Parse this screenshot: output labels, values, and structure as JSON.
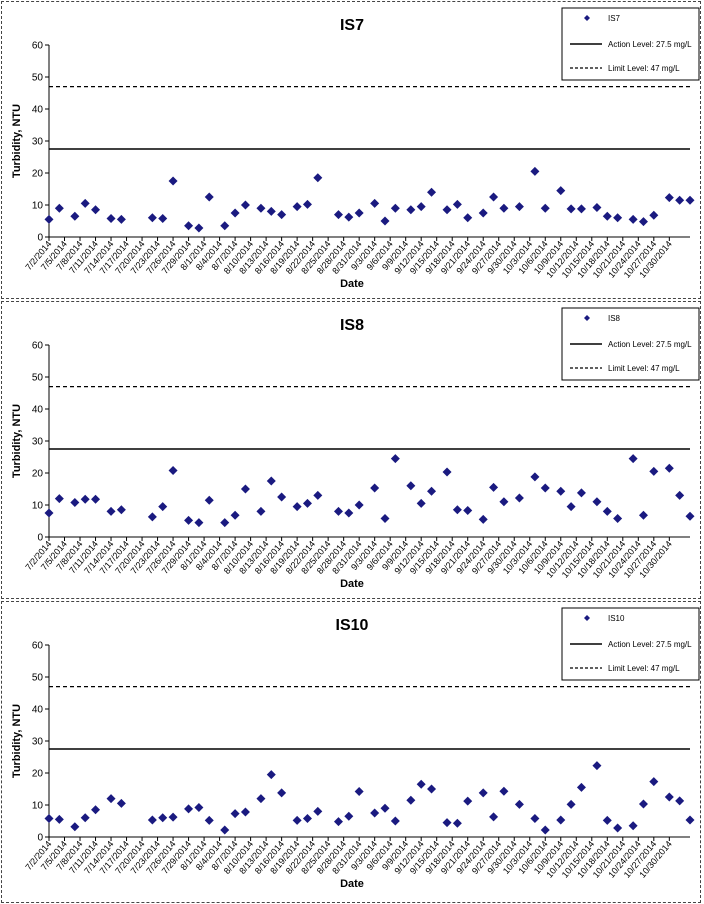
{
  "colors": {
    "marker": "#1a1a80",
    "line": "#000000",
    "axis": "#000000"
  },
  "dates": [
    "7/2/2014",
    "7/5/2014",
    "7/8/2014",
    "7/11/2014",
    "7/14/2014",
    "7/17/2014",
    "7/20/2014",
    "7/23/2014",
    "7/26/2014",
    "7/29/2014",
    "8/1/2014",
    "8/4/2014",
    "8/7/2014",
    "8/10/2014",
    "8/13/2014",
    "8/16/2014",
    "8/19/2014",
    "8/22/2014",
    "8/25/2014",
    "8/28/2014",
    "8/31/2014",
    "9/3/2014",
    "9/6/2014",
    "9/9/2014",
    "9/12/2014",
    "9/15/2014",
    "9/18/2014",
    "9/21/2014",
    "9/24/2014",
    "9/27/2014",
    "9/30/2014",
    "10/3/2014",
    "10/6/2014",
    "10/9/2014",
    "10/12/2014",
    "10/15/2014",
    "10/18/2014",
    "10/21/2014",
    "10/24/2014",
    "10/27/2014",
    "10/30/2014"
  ],
  "chart_data": [
    {
      "type": "scatter",
      "title": "IS7",
      "xlabel": "Date",
      "ylabel": "Turbidity, NTU",
      "ylim": [
        0,
        60
      ],
      "yticks": [
        0,
        10,
        20,
        30,
        40,
        50,
        60
      ],
      "grid": false,
      "legend_position": "top-right",
      "series": [
        {
          "name": "IS7",
          "marker": "diamond",
          "points": [
            [
              "7/2/2014",
              5.5
            ],
            [
              "7/4/2014",
              9
            ],
            [
              "7/7/2014",
              6.5
            ],
            [
              "7/9/2014",
              10.5
            ],
            [
              "7/11/2014",
              8.5
            ],
            [
              "7/14/2014",
              5.8
            ],
            [
              "7/16/2014",
              5.5
            ],
            [
              "7/22/2014",
              6
            ],
            [
              "7/24/2014",
              5.8
            ],
            [
              "7/26/2014",
              17.5
            ],
            [
              "7/29/2014",
              3.5
            ],
            [
              "7/31/2014",
              2.8
            ],
            [
              "8/2/2014",
              12.5
            ],
            [
              "8/5/2014",
              3.5
            ],
            [
              "8/7/2014",
              7.5
            ],
            [
              "8/9/2014",
              10
            ],
            [
              "8/12/2014",
              9
            ],
            [
              "8/14/2014",
              8
            ],
            [
              "8/16/2014",
              7
            ],
            [
              "8/19/2014",
              9.5
            ],
            [
              "8/21/2014",
              10.2
            ],
            [
              "8/23/2014",
              18.5
            ],
            [
              "8/27/2014",
              7
            ],
            [
              "8/29/2014",
              6.2
            ],
            [
              "8/31/2014",
              7.5
            ],
            [
              "9/3/2014",
              10.5
            ],
            [
              "9/5/2014",
              5
            ],
            [
              "9/7/2014",
              9
            ],
            [
              "9/10/2014",
              8.5
            ],
            [
              "9/12/2014",
              9.5
            ],
            [
              "9/14/2014",
              14
            ],
            [
              "9/17/2014",
              8.5
            ],
            [
              "9/19/2014",
              10.2
            ],
            [
              "9/21/2014",
              6
            ],
            [
              "9/24/2014",
              7.5
            ],
            [
              "9/26/2014",
              12.5
            ],
            [
              "9/28/2014",
              9
            ],
            [
              "10/1/2014",
              9.5
            ],
            [
              "10/4/2014",
              20.5
            ],
            [
              "10/6/2014",
              9
            ],
            [
              "10/9/2014",
              14.5
            ],
            [
              "10/11/2014",
              8.8
            ],
            [
              "10/13/2014",
              8.8
            ],
            [
              "10/16/2014",
              9.2
            ],
            [
              "10/18/2014",
              6.5
            ],
            [
              "10/20/2014",
              6
            ],
            [
              "10/23/2014",
              5.5
            ],
            [
              "10/25/2014",
              4.8
            ],
            [
              "10/27/2014",
              6.8
            ],
            [
              "10/30/2014",
              12.3
            ],
            [
              "11/1/2014",
              11.5
            ],
            [
              "11/3/2014",
              11.5
            ]
          ]
        },
        {
          "name": "Action Level: 27.5 mg/L",
          "type": "line",
          "style": "solid",
          "value": 27.5
        },
        {
          "name": "Limit Level: 47 mg/L",
          "type": "line",
          "style": "dashed",
          "value": 47
        }
      ]
    },
    {
      "type": "scatter",
      "title": "IS8",
      "xlabel": "Date",
      "ylabel": "Turbidity, NTU",
      "ylim": [
        0,
        60
      ],
      "yticks": [
        0,
        10,
        20,
        30,
        40,
        50,
        60
      ],
      "grid": false,
      "legend_position": "top-right",
      "series": [
        {
          "name": "IS8",
          "marker": "diamond",
          "points": [
            [
              "7/2/2014",
              7.5
            ],
            [
              "7/4/2014",
              12
            ],
            [
              "7/7/2014",
              10.8
            ],
            [
              "7/9/2014",
              11.8
            ],
            [
              "7/11/2014",
              11.8
            ],
            [
              "7/14/2014",
              8
            ],
            [
              "7/16/2014",
              8.5
            ],
            [
              "7/22/2014",
              6.3
            ],
            [
              "7/24/2014",
              9.5
            ],
            [
              "7/26/2014",
              20.8
            ],
            [
              "7/29/2014",
              5.2
            ],
            [
              "7/31/2014",
              4.5
            ],
            [
              "8/2/2014",
              11.5
            ],
            [
              "8/5/2014",
              4.5
            ],
            [
              "8/7/2014",
              6.8
            ],
            [
              "8/9/2014",
              15
            ],
            [
              "8/12/2014",
              8
            ],
            [
              "8/14/2014",
              17.5
            ],
            [
              "8/16/2014",
              12.5
            ],
            [
              "8/19/2014",
              9.5
            ],
            [
              "8/21/2014",
              10.5
            ],
            [
              "8/23/2014",
              13
            ],
            [
              "8/27/2014",
              8
            ],
            [
              "8/29/2014",
              7.5
            ],
            [
              "8/31/2014",
              10
            ],
            [
              "9/3/2014",
              15.3
            ],
            [
              "9/5/2014",
              5.8
            ],
            [
              "9/7/2014",
              24.5
            ],
            [
              "9/10/2014",
              16
            ],
            [
              "9/12/2014",
              10.5
            ],
            [
              "9/14/2014",
              14.3
            ],
            [
              "9/17/2014",
              20.3
            ],
            [
              "9/19/2014",
              8.5
            ],
            [
              "9/21/2014",
              8.3
            ],
            [
              "9/24/2014",
              5.5
            ],
            [
              "9/26/2014",
              15.5
            ],
            [
              "9/28/2014",
              11
            ],
            [
              "10/1/2014",
              12.2
            ],
            [
              "10/4/2014",
              18.8
            ],
            [
              "10/6/2014",
              15.3
            ],
            [
              "10/9/2014",
              14.3
            ],
            [
              "10/11/2014",
              9.5
            ],
            [
              "10/13/2014",
              13.8
            ],
            [
              "10/16/2014",
              11
            ],
            [
              "10/18/2014",
              8
            ],
            [
              "10/20/2014",
              5.8
            ],
            [
              "10/23/2014",
              24.5
            ],
            [
              "10/25/2014",
              6.8
            ],
            [
              "10/27/2014",
              20.5
            ],
            [
              "10/30/2014",
              21.5
            ],
            [
              "11/1/2014",
              13
            ],
            [
              "11/3/2014",
              6.5
            ]
          ]
        },
        {
          "name": "Action Level: 27.5 mg/L",
          "type": "line",
          "style": "solid",
          "value": 27.5
        },
        {
          "name": "Limit Level: 47 mg/L",
          "type": "line",
          "style": "dashed",
          "value": 47
        }
      ]
    },
    {
      "type": "scatter",
      "title": "IS10",
      "xlabel": "Date",
      "ylabel": "Turbidity, NTU",
      "ylim": [
        0,
        60
      ],
      "yticks": [
        0,
        10,
        20,
        30,
        40,
        50,
        60
      ],
      "grid": false,
      "legend_position": "top-right",
      "series": [
        {
          "name": "IS10",
          "marker": "diamond",
          "points": [
            [
              "7/2/2014",
              5.8
            ],
            [
              "7/4/2014",
              5.5
            ],
            [
              "7/7/2014",
              3.2
            ],
            [
              "7/9/2014",
              6
            ],
            [
              "7/11/2014",
              8.5
            ],
            [
              "7/14/2014",
              12
            ],
            [
              "7/16/2014",
              10.5
            ],
            [
              "7/22/2014",
              5.3
            ],
            [
              "7/24/2014",
              6
            ],
            [
              "7/26/2014",
              6.2
            ],
            [
              "7/29/2014",
              8.8
            ],
            [
              "7/31/2014",
              9.2
            ],
            [
              "8/2/2014",
              5.2
            ],
            [
              "8/5/2014",
              2.2
            ],
            [
              "8/7/2014",
              7.3
            ],
            [
              "8/9/2014",
              7.8
            ],
            [
              "8/12/2014",
              12
            ],
            [
              "8/14/2014",
              19.5
            ],
            [
              "8/16/2014",
              13.8
            ],
            [
              "8/19/2014",
              5.2
            ],
            [
              "8/21/2014",
              5.8
            ],
            [
              "8/23/2014",
              8
            ],
            [
              "8/27/2014",
              4.8
            ],
            [
              "8/29/2014",
              6.5
            ],
            [
              "8/31/2014",
              14.2
            ],
            [
              "9/3/2014",
              7.5
            ],
            [
              "9/5/2014",
              9
            ],
            [
              "9/7/2014",
              5
            ],
            [
              "9/10/2014",
              11.5
            ],
            [
              "9/12/2014",
              16.5
            ],
            [
              "9/14/2014",
              15
            ],
            [
              "9/17/2014",
              4.5
            ],
            [
              "9/19/2014",
              4.3
            ],
            [
              "9/21/2014",
              11.2
            ],
            [
              "9/24/2014",
              13.8
            ],
            [
              "9/26/2014",
              6.3
            ],
            [
              "9/28/2014",
              14.3
            ],
            [
              "10/1/2014",
              10.2
            ],
            [
              "10/4/2014",
              5.8
            ],
            [
              "10/6/2014",
              2.2
            ],
            [
              "10/9/2014",
              5.3
            ],
            [
              "10/11/2014",
              10.2
            ],
            [
              "10/13/2014",
              15.5
            ],
            [
              "10/16/2014",
              22.3
            ],
            [
              "10/18/2014",
              5.2
            ],
            [
              "10/20/2014",
              2.8
            ],
            [
              "10/23/2014",
              3.5
            ],
            [
              "10/25/2014",
              10.3
            ],
            [
              "10/27/2014",
              17.3
            ],
            [
              "10/30/2014",
              12.5
            ],
            [
              "11/1/2014",
              11.3
            ],
            [
              "11/3/2014",
              5.3
            ]
          ]
        },
        {
          "name": "Action Level: 27.5 mg/L",
          "type": "line",
          "style": "solid",
          "value": 27.5
        },
        {
          "name": "Limit Level: 47 mg/L",
          "type": "line",
          "style": "dashed",
          "value": 47
        }
      ]
    }
  ]
}
